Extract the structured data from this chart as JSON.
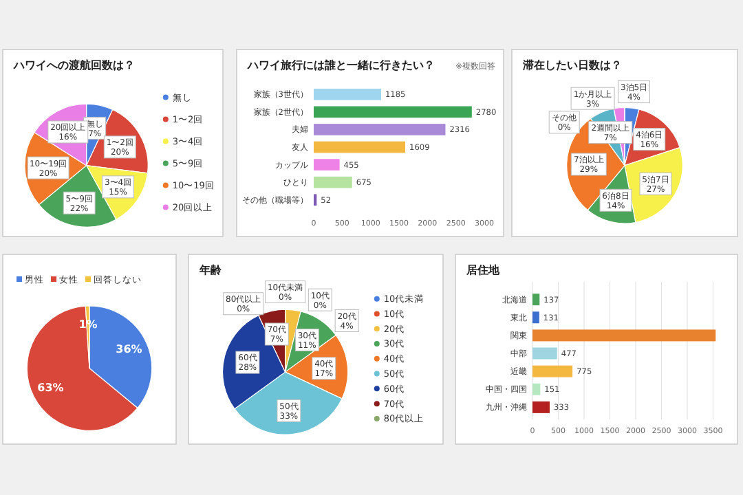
{
  "chart_data": [
    {
      "type": "pie",
      "title": "ハワイへの渡航回数は？",
      "categories": [
        "無し",
        "1〜2回",
        "3〜4回",
        "5〜9回",
        "10〜19回",
        "20回以上"
      ],
      "values": [
        7,
        20,
        15,
        22,
        20,
        16
      ],
      "colors": [
        "#4a7fe0",
        "#d9463a",
        "#f7ef4a",
        "#4aa55a",
        "#f07828",
        "#e87ee6"
      ],
      "value_labels": [
        "7%",
        "20%",
        "15%",
        "22%",
        "20%",
        "16%"
      ],
      "legend": "right"
    },
    {
      "type": "bar",
      "orientation": "horizontal",
      "title": "ハワイ旅行には誰と一緒に行きたい？",
      "annotations": [
        "※複数回答"
      ],
      "categories": [
        "家族（3世代）",
        "家族（2世代）",
        "夫婦",
        "友人",
        "カップル",
        "ひとり",
        "その他（職場等）"
      ],
      "values": [
        1185,
        2780,
        2316,
        1609,
        455,
        675,
        52
      ],
      "colors": [
        "#9fd5ee",
        "#3aa655",
        "#a98ad8",
        "#f4b740",
        "#ee82e6",
        "#b5e3a0",
        "#7d5bb5"
      ],
      "xlim": [
        0,
        3000
      ],
      "xticks": [
        0,
        500,
        1000,
        1500,
        2000,
        2500,
        3000
      ],
      "data_labels": true,
      "grid": false
    },
    {
      "type": "pie",
      "title": "滞在したい日数は？",
      "categories": [
        "3泊5日",
        "4泊6日",
        "5泊7日",
        "6泊8日",
        "7泊以上",
        "2週間以上",
        "1か月以上",
        "その他"
      ],
      "values": [
        4,
        16,
        27,
        14,
        29,
        7,
        3,
        0
      ],
      "colors": [
        "#4a7fe0",
        "#d9463a",
        "#f7ef4a",
        "#4aa55a",
        "#f07828",
        "#5ab4c8",
        "#e87ee6",
        "#9e9e9e"
      ],
      "value_labels": [
        "4%",
        "16%",
        "27%",
        "14%",
        "29%",
        "7%",
        "3%",
        "0%"
      ],
      "legend": false
    },
    {
      "type": "pie",
      "categories": [
        "男性",
        "女性",
        "回答しない"
      ],
      "values": [
        36,
        63,
        1
      ],
      "colors": [
        "#4a7fe0",
        "#d9463a",
        "#f4c040"
      ],
      "value_labels": [
        "36%",
        "63%",
        "1%"
      ],
      "legend": "top"
    },
    {
      "type": "pie",
      "title": "年齢",
      "categories": [
        "10代未満",
        "10代",
        "20代",
        "30代",
        "40代",
        "50代",
        "60代",
        "70代",
        "80代以上"
      ],
      "values": [
        0,
        0,
        4,
        11,
        17,
        33,
        28,
        7,
        0
      ],
      "colors": [
        "#4a7fe0",
        "#e0502a",
        "#f4c040",
        "#4aa55a",
        "#f07828",
        "#6cc3d5",
        "#1f3f9e",
        "#8b1a1a",
        "#8aa86a"
      ],
      "value_labels": [
        "0%",
        "0%",
        "4%",
        "11%",
        "17%",
        "33%",
        "28%",
        "7%",
        "0%"
      ],
      "legend": "right"
    },
    {
      "type": "bar",
      "orientation": "horizontal",
      "title": "居住地",
      "categories": [
        "北海道",
        "東北",
        "関東",
        "中部",
        "近畿",
        "中国・四国",
        "九州・沖縄"
      ],
      "values": [
        137,
        131,
        3550,
        477,
        775,
        151,
        333
      ],
      "colors": [
        "#4aa55a",
        "#3a6fd0",
        "#e8822e",
        "#9fd5e0",
        "#f4b740",
        "#b5e8c0",
        "#b52020"
      ],
      "value_labels": [
        "137",
        "131",
        null,
        "477",
        "775",
        "151",
        "333"
      ],
      "xlim": [
        0,
        3600
      ],
      "xticks": [
        0,
        500,
        1000,
        1500,
        2000,
        2500,
        3000,
        3500
      ],
      "grid": "x"
    }
  ]
}
